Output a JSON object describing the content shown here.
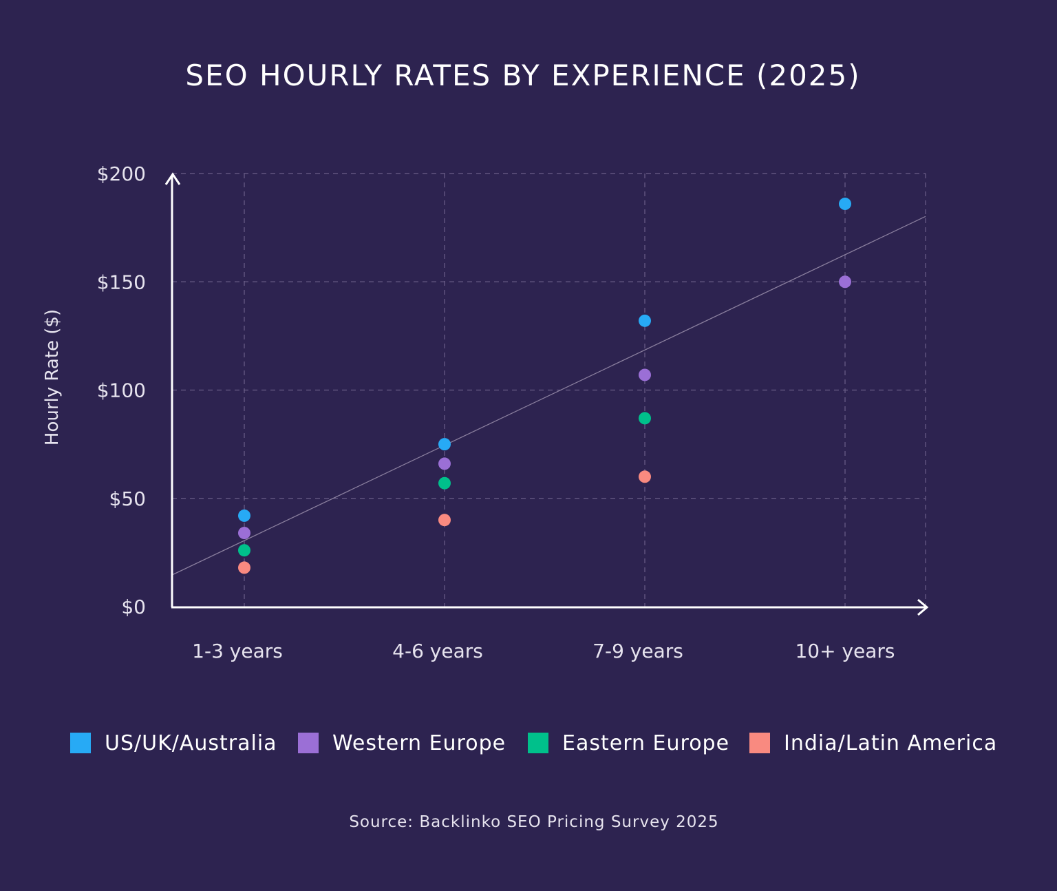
{
  "chart_data": {
    "type": "scatter",
    "title": "SEO HOURLY RATES BY EXPERIENCE (2025)",
    "xlabel": "",
    "ylabel": "Hourly Rate ($)",
    "categories": [
      "1-3 years",
      "4-6 years",
      "7-9 years",
      "10+ years"
    ],
    "y_ticks": [
      "$0",
      "$50",
      "$100",
      "$150",
      "$200"
    ],
    "ylim": [
      0,
      200
    ],
    "grid": true,
    "legend_position": "bottom",
    "series": [
      {
        "name": "US/UK/Australia",
        "color": "#27aaf5",
        "values": [
          42,
          75,
          132,
          186
        ]
      },
      {
        "name": "Western Europe",
        "color": "#9b6fd6",
        "values": [
          34,
          66,
          107,
          150
        ]
      },
      {
        "name": "Eastern Europe",
        "color": "#00c08b",
        "values": [
          26,
          57,
          87,
          null
        ]
      },
      {
        "name": "India/Latin America",
        "color": "#f98a80",
        "values": [
          18,
          40,
          60,
          null
        ]
      }
    ],
    "trendline": {
      "color": "#8a7f9e",
      "start_value": 30.5,
      "slope_per_category": 44
    },
    "source": "Source: Backlinko SEO Pricing Survey 2025"
  }
}
